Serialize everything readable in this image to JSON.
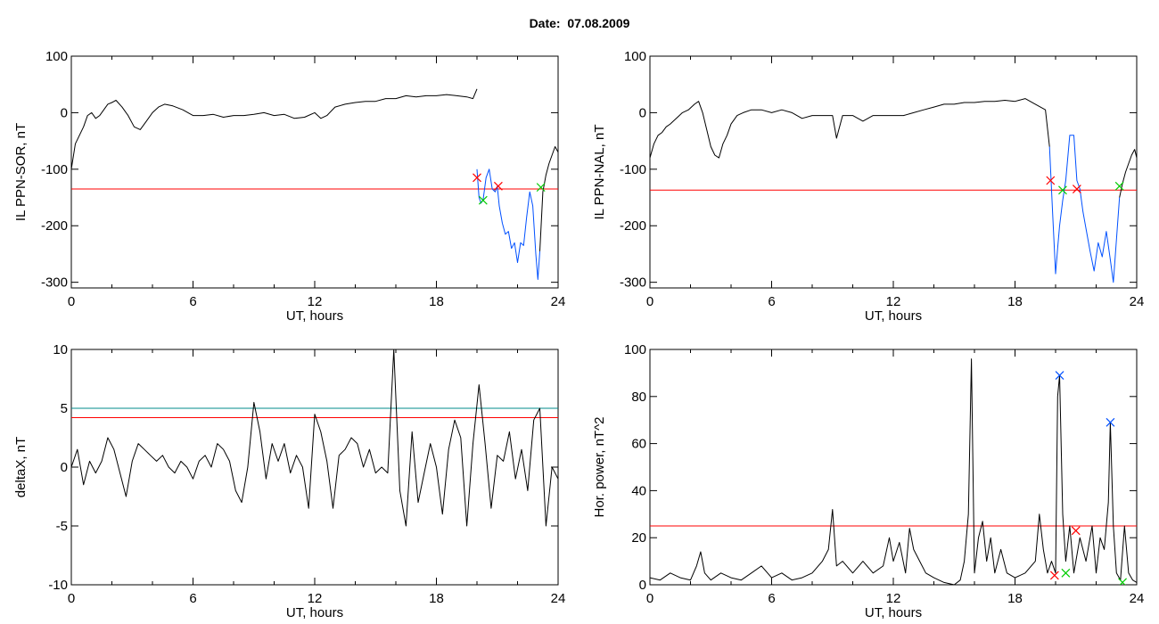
{
  "figure": {
    "title": "Date:  07.08.2009"
  },
  "chart_data": [
    {
      "type": "line",
      "id": "p1",
      "xlabel": "UT, hours",
      "ylabel": "IL PPN-SOR, nT",
      "xlim": [
        0,
        24
      ],
      "ylim": [
        -310,
        100
      ],
      "xticks": [
        "0",
        "6",
        "12",
        "18",
        "24"
      ],
      "yticks": [
        "100",
        "0",
        "-100",
        "-200",
        "-300"
      ],
      "ytick_values": [
        100,
        0,
        -100,
        -200,
        -300
      ],
      "series": [
        {
          "color": "#000000",
          "x": [
            0,
            0.2,
            0.4,
            0.6,
            0.8,
            1.0,
            1.2,
            1.4,
            1.6,
            1.8,
            2.0,
            2.2,
            2.5,
            2.8,
            3.1,
            3.4,
            3.7,
            4.0,
            4.3,
            4.6,
            5.0,
            5.5,
            6.0,
            6.5,
            7.0,
            7.5,
            8.0,
            8.5,
            9.0,
            9.5,
            10.0,
            10.5,
            11.0,
            11.5,
            12.0,
            12.3,
            12.6,
            13.0,
            13.5,
            14.0,
            14.5,
            15.0,
            15.5,
            16.0,
            16.5,
            17.0,
            17.5,
            18.0,
            18.5,
            19.0,
            19.5,
            19.8,
            20.0
          ],
          "y": [
            -100,
            -55,
            -40,
            -25,
            -5,
            0,
            -10,
            -5,
            5,
            15,
            18,
            22,
            10,
            -5,
            -25,
            -30,
            -15,
            0,
            10,
            15,
            12,
            5,
            -5,
            -5,
            -3,
            -8,
            -5,
            -5,
            -3,
            0,
            -5,
            -3,
            -10,
            -8,
            0,
            -10,
            -5,
            10,
            15,
            18,
            20,
            20,
            25,
            25,
            30,
            28,
            30,
            30,
            32,
            30,
            28,
            25,
            42
          ]
        },
        {
          "color": "#0050ff",
          "x": [
            20.0,
            20.1,
            20.2,
            20.3,
            20.45,
            20.6,
            20.75,
            20.9,
            21.0,
            21.1,
            21.25,
            21.4,
            21.55,
            21.7,
            21.85,
            22.0,
            22.15,
            22.3,
            22.45,
            22.6,
            22.75,
            22.9,
            23.0,
            23.1
          ],
          "y": [
            -100,
            -150,
            -160,
            -155,
            -115,
            -100,
            -135,
            -140,
            -130,
            -165,
            -195,
            -215,
            -210,
            -240,
            -230,
            -265,
            -230,
            -235,
            -185,
            -140,
            -165,
            -250,
            -295,
            -245
          ]
        },
        {
          "color": "#000000",
          "x": [
            23.1,
            23.25,
            23.4,
            23.55,
            23.7,
            23.85,
            24.0
          ],
          "y": [
            -245,
            -140,
            -110,
            -90,
            -75,
            -60,
            -70
          ]
        }
      ],
      "hlines": [
        {
          "y": -135,
          "color": "#ff0000"
        }
      ],
      "markers": [
        {
          "x": 20.0,
          "y": -115,
          "color": "#ff0000"
        },
        {
          "x": 20.3,
          "y": -155,
          "color": "#00cc00"
        },
        {
          "x": 21.05,
          "y": -130,
          "color": "#ff0000"
        },
        {
          "x": 23.15,
          "y": -132,
          "color": "#00cc00"
        }
      ]
    },
    {
      "type": "line",
      "id": "p2",
      "xlabel": "UT, hours",
      "ylabel": "IL PPN-NAL, nT",
      "xlim": [
        0,
        24
      ],
      "ylim": [
        -310,
        100
      ],
      "xticks": [
        "0",
        "6",
        "12",
        "18",
        "24"
      ],
      "yticks": [
        "100",
        "0",
        "-100",
        "-200",
        "-300"
      ],
      "ytick_values": [
        100,
        0,
        -100,
        -200,
        -300
      ],
      "series": [
        {
          "color": "#000000",
          "x": [
            0,
            0.2,
            0.4,
            0.6,
            0.8,
            1.0,
            1.3,
            1.6,
            1.9,
            2.2,
            2.4,
            2.6,
            2.8,
            3.0,
            3.2,
            3.4,
            3.6,
            3.8,
            4.0,
            4.3,
            4.6,
            5.0,
            5.5,
            6.0,
            6.5,
            7.0,
            7.5,
            8.0,
            8.5,
            9.0,
            9.2,
            9.5,
            10.0,
            10.5,
            11.0,
            11.5,
            12.0,
            12.5,
            13.0,
            13.5,
            14.0,
            14.5,
            15.0,
            15.5,
            16.0,
            16.5,
            17.0,
            17.5,
            18.0,
            18.5,
            19.0,
            19.5,
            19.7
          ],
          "y": [
            -80,
            -55,
            -40,
            -35,
            -25,
            -20,
            -10,
            0,
            5,
            15,
            20,
            0,
            -30,
            -60,
            -75,
            -80,
            -55,
            -40,
            -20,
            -5,
            0,
            5,
            5,
            0,
            5,
            0,
            -10,
            -5,
            -5,
            -5,
            -45,
            -5,
            -5,
            -15,
            -5,
            -5,
            -5,
            -5,
            0,
            5,
            10,
            15,
            15,
            18,
            18,
            20,
            20,
            22,
            20,
            25,
            15,
            5,
            -60
          ]
        },
        {
          "color": "#0050ff",
          "x": [
            19.7,
            19.85,
            20.0,
            20.1,
            20.2,
            20.35,
            20.5,
            20.7,
            20.9,
            21.05,
            21.2,
            21.35,
            21.5,
            21.7,
            21.9,
            22.1,
            22.3,
            22.5,
            22.7,
            22.85,
            22.95,
            23.05,
            23.15
          ],
          "y": [
            -60,
            -175,
            -285,
            -240,
            -200,
            -155,
            -120,
            -40,
            -40,
            -120,
            -135,
            -175,
            -205,
            -245,
            -280,
            -230,
            -255,
            -210,
            -260,
            -300,
            -250,
            -200,
            -150
          ]
        },
        {
          "color": "#000000",
          "x": [
            23.15,
            23.3,
            23.45,
            23.6,
            23.75,
            23.9,
            24.0
          ],
          "y": [
            -150,
            -125,
            -105,
            -90,
            -75,
            -65,
            -80
          ]
        }
      ],
      "hlines": [
        {
          "y": -137,
          "color": "#ff0000"
        }
      ],
      "markers": [
        {
          "x": 19.75,
          "y": -120,
          "color": "#ff0000"
        },
        {
          "x": 20.35,
          "y": -137,
          "color": "#00cc00"
        },
        {
          "x": 21.05,
          "y": -135,
          "color": "#ff0000"
        },
        {
          "x": 23.15,
          "y": -130,
          "color": "#00cc00"
        }
      ]
    },
    {
      "type": "line",
      "id": "p3",
      "xlabel": "UT, hours",
      "ylabel": "deltaX, nT",
      "xlim": [
        0,
        24
      ],
      "ylim": [
        -10,
        10
      ],
      "xticks": [
        "0",
        "6",
        "12",
        "18",
        "24"
      ],
      "yticks": [
        "10",
        "5",
        "0",
        "-5",
        "-10"
      ],
      "ytick_values": [
        10,
        5,
        0,
        -5,
        -10
      ],
      "series": [
        {
          "color": "#000000",
          "x": [
            0,
            0.3,
            0.6,
            0.9,
            1.2,
            1.5,
            1.8,
            2.1,
            2.4,
            2.7,
            3.0,
            3.3,
            3.6,
            3.9,
            4.2,
            4.5,
            4.8,
            5.1,
            5.4,
            5.7,
            6.0,
            6.3,
            6.6,
            6.9,
            7.2,
            7.5,
            7.8,
            8.1,
            8.4,
            8.7,
            9.0,
            9.3,
            9.6,
            9.9,
            10.2,
            10.5,
            10.8,
            11.1,
            11.4,
            11.7,
            12.0,
            12.3,
            12.6,
            12.9,
            13.2,
            13.5,
            13.8,
            14.1,
            14.4,
            14.7,
            15.0,
            15.3,
            15.6,
            15.9,
            16.2,
            16.5,
            16.8,
            17.1,
            17.4,
            17.7,
            18.0,
            18.3,
            18.6,
            18.9,
            19.2,
            19.5,
            19.8,
            20.1,
            20.4,
            20.7,
            21.0,
            21.3,
            21.6,
            21.9,
            22.2,
            22.5,
            22.8,
            23.1,
            23.4,
            23.7,
            24.0
          ],
          "y": [
            0,
            1.5,
            -1.5,
            0.5,
            -0.5,
            0.5,
            2.5,
            1.5,
            -0.5,
            -2.5,
            0.5,
            2,
            1.5,
            1,
            0.5,
            1,
            0,
            -0.5,
            0.5,
            0,
            -1,
            0.5,
            1,
            0,
            2,
            1.5,
            0.5,
            -2,
            -3,
            0,
            5.5,
            3,
            -1,
            2,
            0.5,
            2,
            -0.5,
            1,
            0,
            -3.5,
            4.5,
            3,
            0.5,
            -3.5,
            1,
            1.5,
            2.5,
            2,
            0,
            1.5,
            -0.5,
            0,
            -0.5,
            10,
            -2,
            -5,
            3,
            -3,
            -0.5,
            2,
            0,
            -4,
            1.5,
            4,
            2.5,
            -5,
            2,
            7,
            2,
            -3.5,
            1,
            0.5,
            3,
            -1,
            1.5,
            -2,
            4,
            5,
            -5,
            0,
            -1
          ]
        }
      ],
      "hlines": [
        {
          "y": 5,
          "color": "#008b8b"
        },
        {
          "y": 4.2,
          "color": "#ff0000"
        }
      ],
      "markers": []
    },
    {
      "type": "line",
      "id": "p4",
      "xlabel": "UT, hours",
      "ylabel": "Hor. power, nT^2",
      "xlim": [
        0,
        24
      ],
      "ylim": [
        0,
        100
      ],
      "xticks": [
        "0",
        "6",
        "12",
        "18",
        "24"
      ],
      "yticks": [
        "100",
        "80",
        "60",
        "40",
        "20",
        "0"
      ],
      "ytick_values": [
        100,
        80,
        60,
        40,
        20,
        0
      ],
      "series": [
        {
          "color": "#000000",
          "x": [
            0,
            0.5,
            1.0,
            1.5,
            2.0,
            2.3,
            2.5,
            2.7,
            3.0,
            3.5,
            4.0,
            4.5,
            5.0,
            5.5,
            6.0,
            6.5,
            7.0,
            7.5,
            8.0,
            8.5,
            8.8,
            9.0,
            9.2,
            9.5,
            10.0,
            10.5,
            11.0,
            11.5,
            11.8,
            12.0,
            12.3,
            12.6,
            12.8,
            13.0,
            13.3,
            13.6,
            14.0,
            14.5,
            15.0,
            15.3,
            15.5,
            15.7,
            15.85,
            16.0,
            16.2,
            16.4,
            16.6,
            16.8,
            17.0,
            17.3,
            17.6,
            18.0,
            18.5,
            19.0,
            19.2,
            19.4,
            19.6,
            19.8,
            20.0,
            20.1,
            20.2,
            20.35,
            20.5,
            20.7,
            20.9,
            21.2,
            21.5,
            21.8,
            22.0,
            22.2,
            22.4,
            22.6,
            22.7,
            22.85,
            23.0,
            23.2,
            23.4,
            23.6,
            23.8,
            24.0
          ],
          "y": [
            3,
            2,
            5,
            3,
            2,
            8,
            14,
            5,
            2,
            5,
            3,
            2,
            5,
            8,
            3,
            5,
            2,
            3,
            5,
            10,
            15,
            32,
            8,
            10,
            5,
            10,
            5,
            8,
            20,
            10,
            18,
            5,
            24,
            15,
            10,
            5,
            3,
            1,
            0,
            2,
            10,
            30,
            96,
            5,
            20,
            27,
            10,
            20,
            5,
            15,
            5,
            3,
            5,
            10,
            30,
            15,
            5,
            10,
            5,
            80,
            89,
            30,
            10,
            25,
            5,
            20,
            10,
            25,
            5,
            20,
            15,
            35,
            69,
            25,
            5,
            2,
            25,
            5,
            2,
            1
          ]
        }
      ],
      "hlines": [
        {
          "y": 25,
          "color": "#ff0000"
        }
      ],
      "markers": [
        {
          "x": 20.2,
          "y": 89,
          "color": "#0050ff"
        },
        {
          "x": 22.7,
          "y": 69,
          "color": "#0050ff"
        },
        {
          "x": 19.95,
          "y": 4,
          "color": "#ff0000"
        },
        {
          "x": 20.5,
          "y": 5,
          "color": "#00cc00"
        },
        {
          "x": 21.0,
          "y": 23,
          "color": "#ff0000"
        },
        {
          "x": 23.3,
          "y": 1,
          "color": "#00cc00"
        }
      ]
    }
  ]
}
